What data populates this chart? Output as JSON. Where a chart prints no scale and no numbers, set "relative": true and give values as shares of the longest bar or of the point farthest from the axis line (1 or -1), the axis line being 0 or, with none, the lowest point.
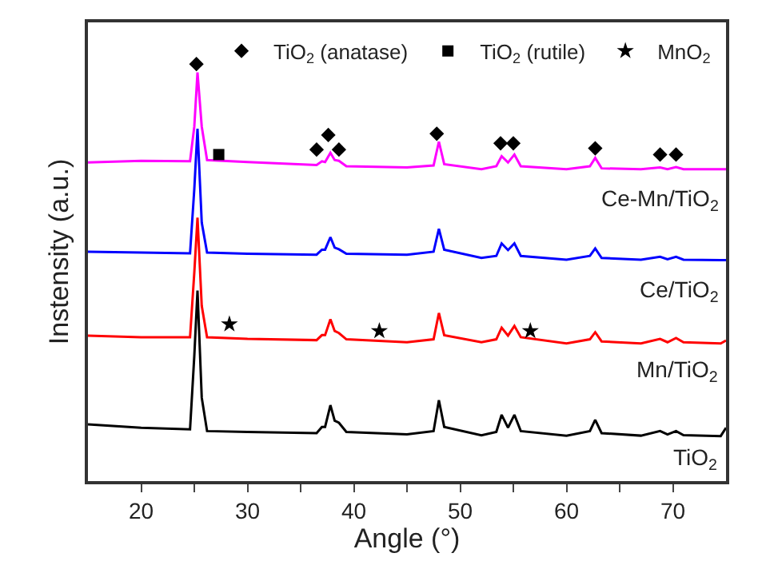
{
  "chart_data": {
    "type": "line",
    "relative": true,
    "xlabel": "Angle (°)",
    "ylabel": "Instensity (a.u.)",
    "xlim": [
      15,
      75
    ],
    "xticks": [
      20,
      {
        "value": 25,
        "label": null
      },
      30,
      {
        "value": 35,
        "label": null
      },
      40,
      {
        "value": 45,
        "label": null
      },
      50,
      {
        "value": 55,
        "label": null
      },
      60,
      {
        "value": 65,
        "label": null
      },
      70
    ],
    "tick_labels": "x",
    "legend": "top right",
    "x": [
      15,
      20,
      24.6,
      25.0,
      25.3,
      25.7,
      26.2,
      30,
      36.5,
      37.0,
      37.3,
      37.8,
      38.2,
      38.6,
      39.3,
      45,
      47.5,
      48.0,
      48.5,
      52,
      53.4,
      53.9,
      54.5,
      55.1,
      55.7,
      60,
      62.2,
      62.7,
      63.3,
      67,
      68.8,
      69.5,
      70.3,
      71,
      74.5,
      75
    ],
    "series": [
      {
        "name": "TiO$_{2}$",
        "color": "#000000",
        "values": [
          0.136,
          0.128,
          0.124,
          0.3,
          0.457,
          0.2,
          0.12,
          0.118,
          0.115,
          0.13,
          0.13,
          0.182,
          0.145,
          0.14,
          0.118,
          0.112,
          0.12,
          0.194,
          0.13,
          0.11,
          0.118,
          0.159,
          0.128,
          0.159,
          0.12,
          0.109,
          0.12,
          0.147,
          0.115,
          0.109,
          0.12,
          0.112,
          0.12,
          0.11,
          0.108,
          0.128
        ]
      },
      {
        "name": "Mn/TiO$_{2}$",
        "color": "#ff0000",
        "values": [
          0.349,
          0.345,
          0.345,
          0.5,
          0.632,
          0.42,
          0.345,
          0.341,
          0.338,
          0.35,
          0.35,
          0.388,
          0.36,
          0.355,
          0.34,
          0.333,
          0.34,
          0.403,
          0.35,
          0.333,
          0.34,
          0.368,
          0.349,
          0.372,
          0.345,
          0.33,
          0.34,
          0.357,
          0.335,
          0.33,
          0.341,
          0.333,
          0.343,
          0.333,
          0.33,
          0.337
        ]
      },
      {
        "name": "Ce/TiO$_{2}$",
        "color": "#0000ff",
        "values": [
          0.55,
          0.548,
          0.546,
          0.7,
          0.845,
          0.62,
          0.548,
          0.545,
          0.543,
          0.555,
          0.555,
          0.585,
          0.56,
          0.556,
          0.545,
          0.543,
          0.55,
          0.605,
          0.555,
          0.535,
          0.54,
          0.57,
          0.554,
          0.57,
          0.54,
          0.531,
          0.54,
          0.558,
          0.535,
          0.531,
          0.538,
          0.532,
          0.538,
          0.531,
          0.53,
          0.53
        ]
      },
      {
        "name": "Ce-Mn/TiO$_{2}$",
        "color": "#ff00ff",
        "values": [
          0.764,
          0.768,
          0.767,
          0.85,
          0.98,
          0.85,
          0.77,
          0.765,
          0.758,
          0.767,
          0.765,
          0.787,
          0.77,
          0.768,
          0.755,
          0.752,
          0.757,
          0.814,
          0.76,
          0.748,
          0.755,
          0.779,
          0.764,
          0.783,
          0.755,
          0.748,
          0.755,
          0.775,
          0.75,
          0.748,
          0.752,
          0.748,
          0.753,
          0.748,
          0.748,
          0.748
        ]
      },
      {
        "name": "TiO$_{2}$ (anatase)",
        "type": "scatter",
        "marker": "diamond",
        "color": "#000000",
        "x": [
          25.2,
          36.5,
          37.6,
          38.6,
          47.8,
          53.8,
          55.0,
          62.7,
          68.8,
          70.3
        ],
        "values": [
          1.0,
          0.795,
          0.83,
          0.795,
          0.833,
          0.81,
          0.81,
          0.798,
          0.783,
          0.783
        ]
      },
      {
        "name": "TiO$_{2}$ (rutile)",
        "type": "scatter",
        "marker": "square",
        "color": "#000000",
        "x": [
          27.3
        ],
        "values": [
          0.783
        ]
      },
      {
        "name": "MnO$_{2}$",
        "type": "scatter",
        "marker": "star",
        "color": "#000000",
        "x": [
          28.3,
          42.4,
          56.6
        ],
        "values": [
          0.376,
          0.36,
          0.36
        ]
      }
    ]
  }
}
